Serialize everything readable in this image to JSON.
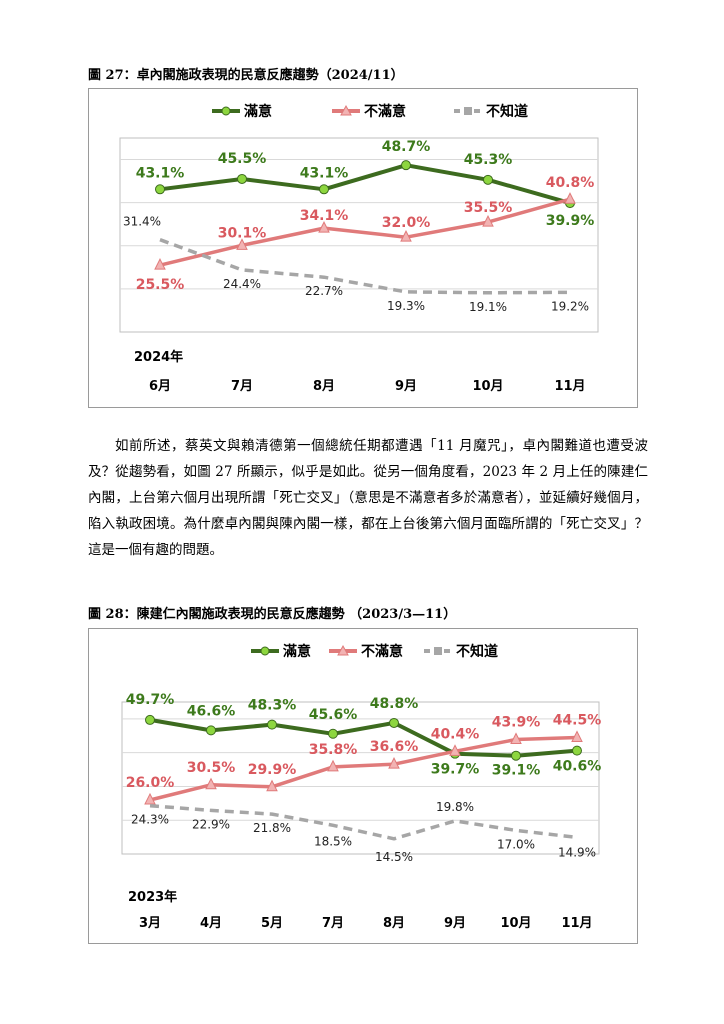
{
  "chart_data": [
    {
      "type": "line",
      "title": "圖 27：卓內閣施政表現的民意反應趨勢（2024/11）",
      "year_label": "2024年",
      "categories": [
        "6月",
        "7月",
        "8月",
        "9月",
        "10月",
        "11月"
      ],
      "series": [
        {
          "name": "滿意",
          "values": [
            43.1,
            45.5,
            43.1,
            48.7,
            45.3,
            39.9
          ],
          "labels": [
            "43.1%",
            "45.5%",
            "43.1%",
            "48.7%",
            "45.3%",
            "39.9%"
          ],
          "color": "#3d6b1f",
          "marker": "#8dd63f"
        },
        {
          "name": "不滿意",
          "values": [
            25.5,
            30.1,
            34.1,
            32.0,
            35.5,
            40.8
          ],
          "labels": [
            "25.5%",
            "30.1%",
            "34.1%",
            "32.0%",
            "35.5%",
            "40.8%"
          ],
          "color": "#e07a7a",
          "marker": "#f2b3b3"
        },
        {
          "name": "不知道",
          "values": [
            31.4,
            24.4,
            22.7,
            19.3,
            19.1,
            19.2
          ],
          "labels": [
            "31.4%",
            "24.4%",
            "22.7%",
            "19.3%",
            "19.1%",
            "19.2%"
          ],
          "color": "#a6a6a6",
          "marker": "#a6a6a6"
        }
      ],
      "legend_position": "top",
      "grid": true
    },
    {
      "type": "line",
      "title": "圖 28：陳建仁內閣施政表現的民意反應趨勢 （2023/3—11）",
      "year_label": "2023年",
      "categories": [
        "3月",
        "4月",
        "5月",
        "7月",
        "8月",
        "9月",
        "10月",
        "11月"
      ],
      "series": [
        {
          "name": "滿意",
          "values": [
            49.7,
            46.6,
            48.3,
            45.6,
            48.8,
            39.7,
            39.1,
            40.6
          ],
          "labels": [
            "49.7%",
            "46.6%",
            "48.3%",
            "45.6%",
            "48.8%",
            "39.7%",
            "39.1%",
            "40.6%"
          ],
          "color": "#3d6b1f",
          "marker": "#8dd63f"
        },
        {
          "name": "不滿意",
          "values": [
            26.0,
            30.5,
            29.9,
            35.8,
            36.6,
            40.4,
            43.9,
            44.5
          ],
          "labels": [
            "26.0%",
            "30.5%",
            "29.9%",
            "35.8%",
            "36.6%",
            "40.4%",
            "43.9%",
            "44.5%"
          ],
          "color": "#e07a7a",
          "marker": "#f2b3b3"
        },
        {
          "name": "不知道",
          "values": [
            24.3,
            22.9,
            21.8,
            18.5,
            14.5,
            19.8,
            17.0,
            14.9
          ],
          "labels": [
            "24.3%",
            "22.9%",
            "21.8%",
            "18.5%",
            "14.5%",
            "19.8%",
            "17.0%",
            "14.9%"
          ],
          "color": "#a6a6a6",
          "marker": "#a6a6a6"
        }
      ],
      "legend_position": "top",
      "grid": true
    }
  ],
  "paragraph": "如前所述，蔡英文與賴清德第一個總統任期都遭遇「11 月魔咒」，卓內閣難道也遭受波及？從趨勢看，如圖 27 所顯示，似乎是如此。從另一個角度看，2023 年 2 月上任的陳建仁內閣，上台第六個月出現所謂「死亡交叉」（意思是不滿意者多於滿意者），並延續好幾個月，陷入執政困境。為什麼卓內閣與陳內閣一樣，都在上台後第六個月面臨所謂的「死亡交叉」？這是一個有趣的問題。"
}
